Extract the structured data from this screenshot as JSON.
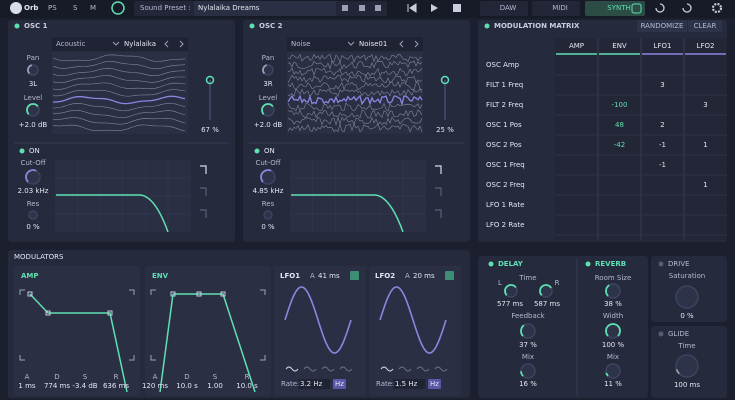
{
  "header": {
    "logo": "Orb",
    "badge": "PS",
    "solo": "S",
    "mute": "M",
    "preset_label": "Sound Preset :",
    "preset_name": "Nylalaika Dreams",
    "tabs": [
      "DAW",
      "MIDI",
      "SYNTH"
    ]
  },
  "osc1": {
    "title": "OSC 1",
    "wave_type": "Acoustic",
    "wave_name": "Nylalaika",
    "pan_label": "Pan",
    "pan": "3L",
    "level_label": "Level",
    "level": "+2.0 dB",
    "mix": "67 %"
  },
  "osc2": {
    "title": "OSC 2",
    "wave_type": "Noise",
    "wave_name": "Noise01",
    "pan_label": "Pan",
    "pan": "3R",
    "level_label": "Level",
    "level": "+2.0 dB",
    "mix": "25 %"
  },
  "filter1": {
    "on": "ON",
    "cutoff_label": "Cut-Off",
    "cutoff": "2.03 kHz",
    "res_label": "Res",
    "res": "0 %"
  },
  "filter2": {
    "on": "ON",
    "cutoff_label": "Cut-Off",
    "cutoff": "4.85 kHz",
    "res_label": "Res",
    "res": "0 %"
  },
  "matrix": {
    "title": "MODULATION MATRIX",
    "randomize": "RANDOMIZE",
    "clear": "CLEAR",
    "columns": [
      "AMP",
      "ENV",
      "LFO1",
      "LFO2"
    ],
    "rows": [
      {
        "name": "OSC Amp",
        "cells": [
          null,
          null,
          null,
          null
        ]
      },
      {
        "name": "FILT 1 Freq",
        "cells": [
          null,
          null,
          3,
          null
        ]
      },
      {
        "name": "FILT 2 Freq",
        "cells": [
          null,
          -100,
          null,
          3
        ]
      },
      {
        "name": "OSC 1 Pos",
        "cells": [
          null,
          48,
          2,
          null
        ]
      },
      {
        "name": "OSC 2 Pos",
        "cells": [
          null,
          -42,
          -1,
          1
        ]
      },
      {
        "name": "OSC 1 Freq",
        "cells": [
          null,
          null,
          -1,
          null
        ]
      },
      {
        "name": "OSC 2 Freq",
        "cells": [
          null,
          null,
          null,
          1
        ]
      },
      {
        "name": "LFO 1 Rate",
        "cells": [
          null,
          null,
          null,
          null
        ]
      },
      {
        "name": "LFO 2 Rate",
        "cells": [
          null,
          null,
          null,
          null
        ]
      }
    ]
  },
  "modulators": {
    "title": "MODULATORS",
    "amp": {
      "title": "AMP",
      "labels": [
        "A",
        "D",
        "S",
        "R"
      ],
      "values": [
        "1 ms",
        "774 ms",
        "-3.4 dB",
        "636 ms"
      ]
    },
    "env": {
      "title": "ENV",
      "labels": [
        "A",
        "D",
        "S",
        "R"
      ],
      "values": [
        "120 ms",
        "10.0 s",
        "1.00",
        "10.0 s"
      ]
    },
    "lfo1": {
      "title": "LFO1",
      "attack_label": "A",
      "attack": "41 ms",
      "rate_label": "Rate:",
      "rate": "3.2 Hz",
      "unit": "Hz"
    },
    "lfo2": {
      "title": "LFO2",
      "attack_label": "A",
      "attack": "20 ms",
      "rate_label": "Rate:",
      "rate": "1.5 Hz",
      "unit": "Hz"
    }
  },
  "delay": {
    "title": "DELAY",
    "time_label": "Time",
    "left": "L",
    "right": "R",
    "time_left": "577 ms",
    "time_right": "587 ms",
    "feedback_label": "Feedback",
    "feedback": "37 %",
    "mix_label": "Mix",
    "mix": "16 %"
  },
  "reverb": {
    "title": "REVERB",
    "room_label": "Room Size",
    "room": "38 %",
    "width_label": "Width",
    "width": "100 %",
    "mix_label": "Mix",
    "mix": "11 %"
  },
  "drive": {
    "title": "DRIVE",
    "saturation_label": "Saturation",
    "saturation": "0 %"
  },
  "glide": {
    "title": "GLIDE",
    "time_label": "Time",
    "time": "100 ms"
  }
}
